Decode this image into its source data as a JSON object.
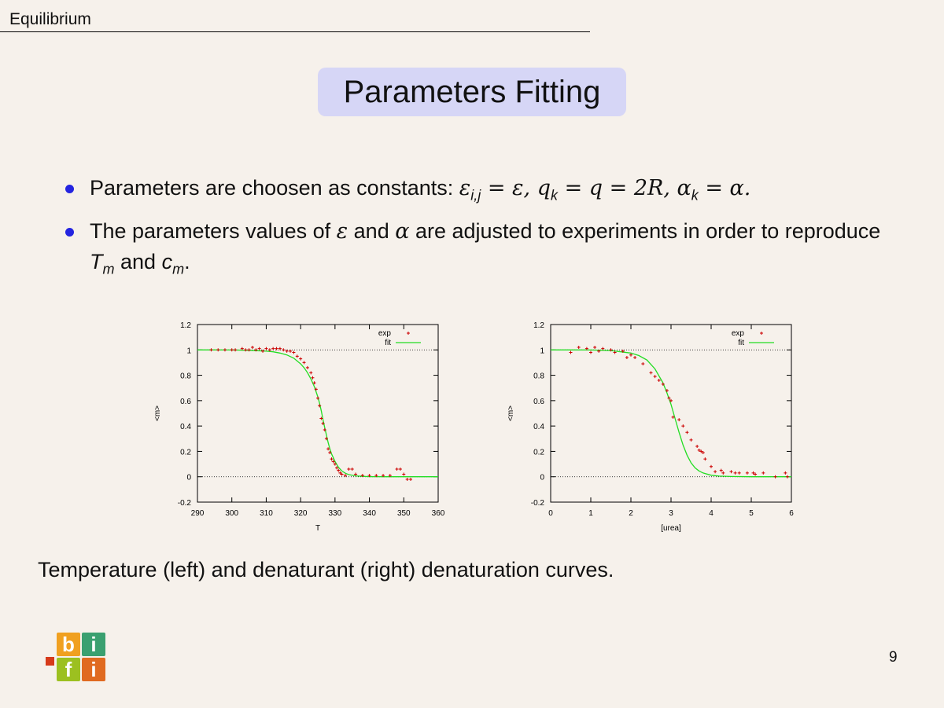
{
  "header": {
    "section_title": "Equilibrium"
  },
  "slide": {
    "title": "Parameters Fitting",
    "bullets": [
      {
        "prefix": "Parameters are choosen as constants: ",
        "math": "ε",
        "math2": "i,j",
        "rest": " = ε, q",
        "rest2": "k",
        "rest3": " = q = 2R, α",
        "rest4": "k",
        "rest5": " = α."
      },
      {
        "text_a": "The parameters values of ",
        "sym_a": "ε",
        "text_b": " and ",
        "sym_b": "α",
        "text_c": " are adjusted to experiments in order to reproduce ",
        "t_sym": "T",
        "t_sub": "m",
        "text_d": " and ",
        "c_sym": "c",
        "c_sub": "m",
        "text_e": "."
      }
    ],
    "caption": "Temperature (left) and denaturant (right) denaturation curves.",
    "page_number": "9",
    "logo_letters": [
      "b",
      "i",
      "f",
      "i"
    ]
  },
  "colors": {
    "title_bg": "#d6d6f6",
    "bullet": "#2424e0",
    "exp": "#cc0000",
    "fit": "#22dd22"
  },
  "chart_data": [
    {
      "type": "scatter",
      "xlabel": "T",
      "ylabel": "<m>",
      "xlim": [
        290,
        360
      ],
      "ylim": [
        -0.2,
        1.2
      ],
      "xticks": [
        290,
        300,
        310,
        320,
        330,
        340,
        350,
        360
      ],
      "yticks": [
        -0.2,
        0,
        0.2,
        0.4,
        0.6,
        0.8,
        1,
        1.2
      ],
      "ytick_labels": [
        "-0.2",
        "0",
        "0.2",
        "0.4",
        "0.6",
        "0.8",
        "1",
        "1.2"
      ],
      "reference_lines": [
        0,
        1
      ],
      "legend_position": "top-right",
      "series": [
        {
          "name": "exp",
          "style": "points",
          "x": [
            294,
            296,
            298,
            300,
            301,
            303,
            304,
            305,
            306,
            307,
            308,
            309,
            310,
            311,
            312,
            313,
            314,
            315,
            316,
            317,
            318,
            319,
            320,
            321,
            322,
            323,
            323.5,
            324,
            324.5,
            325,
            325.5,
            326,
            326.5,
            327,
            327.5,
            328,
            328.5,
            329,
            329.5,
            330,
            330.5,
            331,
            331.5,
            332,
            333,
            334,
            335,
            336,
            338,
            340,
            342,
            344,
            346,
            348,
            349,
            350,
            351,
            352
          ],
          "y": [
            1.0,
            1.0,
            1.0,
            1.0,
            1.0,
            1.01,
            1.0,
            1.0,
            1.02,
            1.0,
            1.01,
            0.99,
            1.01,
            1.0,
            1.01,
            1.01,
            1.01,
            1.0,
            0.99,
            0.99,
            0.98,
            0.95,
            0.93,
            0.9,
            0.86,
            0.82,
            0.78,
            0.74,
            0.69,
            0.62,
            0.56,
            0.46,
            0.42,
            0.37,
            0.3,
            0.22,
            0.19,
            0.14,
            0.12,
            0.1,
            0.07,
            0.05,
            0.03,
            0.02,
            0.01,
            0.06,
            0.06,
            0.02,
            0.01,
            0.01,
            0.01,
            0.01,
            0.01,
            0.06,
            0.06,
            0.02,
            -0.02,
            -0.02
          ]
        },
        {
          "name": "fit",
          "style": "line",
          "x": [
            290,
            295,
            300,
            305,
            310,
            312,
            314,
            316,
            318,
            320,
            321,
            322,
            323,
            324,
            325,
            325.5,
            326,
            326.5,
            327,
            327.5,
            328,
            328.5,
            329,
            330,
            331,
            332,
            333,
            334,
            336,
            338,
            340,
            345,
            350,
            355,
            360
          ],
          "y": [
            1.0,
            1.0,
            0.999,
            0.997,
            0.99,
            0.985,
            0.975,
            0.96,
            0.935,
            0.89,
            0.86,
            0.82,
            0.77,
            0.71,
            0.63,
            0.58,
            0.52,
            0.45,
            0.39,
            0.33,
            0.27,
            0.22,
            0.18,
            0.12,
            0.075,
            0.045,
            0.028,
            0.017,
            0.007,
            0.003,
            0.001,
            0.0,
            0.0,
            0.0,
            0.0
          ]
        }
      ]
    },
    {
      "type": "scatter",
      "xlabel": "[urea]",
      "ylabel": "<m>",
      "xlim": [
        0,
        6
      ],
      "ylim": [
        -0.2,
        1.2
      ],
      "xticks": [
        0,
        1,
        2,
        3,
        4,
        5,
        6
      ],
      "yticks": [
        -0.2,
        0,
        0.2,
        0.4,
        0.6,
        0.8,
        1,
        1.2
      ],
      "ytick_labels": [
        "-0.2",
        "0",
        "0.2",
        "0.4",
        "0.6",
        "0.8",
        "1",
        "1.2"
      ],
      "reference_lines": [
        0,
        1
      ],
      "legend_position": "top-right",
      "series": [
        {
          "name": "exp",
          "style": "points",
          "x": [
            0.5,
            0.7,
            0.9,
            1.0,
            1.1,
            1.2,
            1.3,
            1.5,
            1.6,
            1.8,
            1.9,
            2.0,
            2.1,
            2.3,
            2.5,
            2.6,
            2.7,
            2.8,
            2.9,
            2.95,
            3.0,
            3.05,
            3.2,
            3.3,
            3.4,
            3.5,
            3.65,
            3.7,
            3.75,
            3.8,
            3.85,
            4.0,
            4.1,
            4.25,
            4.3,
            4.5,
            4.6,
            4.7,
            4.9,
            5.05,
            5.1,
            5.3,
            5.6,
            5.85,
            5.9
          ],
          "y": [
            0.98,
            1.02,
            1.01,
            0.98,
            1.02,
            0.99,
            1.01,
            1.0,
            0.98,
            0.99,
            0.94,
            0.96,
            0.94,
            0.89,
            0.82,
            0.79,
            0.76,
            0.73,
            0.68,
            0.62,
            0.6,
            0.47,
            0.45,
            0.4,
            0.35,
            0.29,
            0.24,
            0.21,
            0.2,
            0.19,
            0.14,
            0.08,
            0.04,
            0.05,
            0.03,
            0.04,
            0.03,
            0.03,
            0.03,
            0.03,
            0.02,
            0.03,
            0.0,
            0.03,
            0.0
          ]
        },
        {
          "name": "fit",
          "style": "line",
          "x": [
            0,
            0.5,
            1.0,
            1.5,
            2.0,
            2.2,
            2.4,
            2.6,
            2.8,
            2.9,
            3.0,
            3.1,
            3.2,
            3.3,
            3.4,
            3.5,
            3.6,
            3.7,
            3.8,
            4.0,
            4.2,
            4.5,
            5.0,
            5.5,
            6.0
          ],
          "y": [
            1.0,
            1.0,
            0.999,
            0.995,
            0.975,
            0.955,
            0.92,
            0.85,
            0.74,
            0.66,
            0.57,
            0.46,
            0.35,
            0.25,
            0.17,
            0.11,
            0.07,
            0.045,
            0.03,
            0.012,
            0.005,
            0.002,
            0.0,
            0.0,
            0.0
          ]
        }
      ]
    }
  ]
}
